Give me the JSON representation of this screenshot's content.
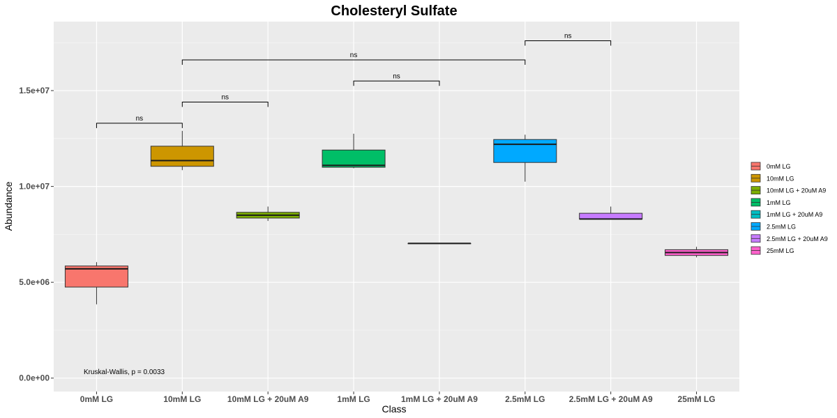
{
  "chart_data": {
    "type": "boxplot",
    "title": "Cholesteryl Sulfate",
    "xlabel": "Class",
    "ylabel": "Abundance",
    "ylim": [
      -700000,
      18600000
    ],
    "y_ticks": [
      0,
      5000000,
      10000000,
      15000000
    ],
    "y_tick_labels": [
      "0.0e+00",
      "5.0e+06",
      "1.0e+07",
      "1.5e+07"
    ],
    "grid": true,
    "legend_position": "right",
    "categories": [
      "0mM LG",
      "10mM LG",
      "10mM LG + 20uM A9",
      "1mM LG",
      "1mM LG + 20uM A9",
      "2.5mM LG",
      "2.5mM LG + 20uM A9",
      "25mM LG"
    ],
    "series": [
      {
        "name": "0mM LG",
        "color": "#F8766D",
        "min": 3850000,
        "q1": 4750000,
        "median": 5700000,
        "q3": 5850000,
        "max": 6050000
      },
      {
        "name": "10mM LG",
        "color": "#CD9600",
        "min": 10850000,
        "q1": 11050000,
        "median": 11350000,
        "q3": 12100000,
        "max": 12900000
      },
      {
        "name": "10mM LG + 20uM A9",
        "color": "#7CAE00",
        "min": 8200000,
        "q1": 8350000,
        "median": 8500000,
        "q3": 8650000,
        "max": 8950000
      },
      {
        "name": "1mM LG",
        "color": "#00BE67",
        "min": 10950000,
        "q1": 11000000,
        "median": 11100000,
        "q3": 11900000,
        "max": 12750000
      },
      {
        "name": "1mM LG + 20uM A9",
        "color": "#00BFC4",
        "min": 7030000,
        "q1": 7030000,
        "median": 7030000,
        "q3": 7030000,
        "max": 7030000
      },
      {
        "name": "2.5mM LG",
        "color": "#00A9FF",
        "min": 10250000,
        "q1": 11250000,
        "median": 12200000,
        "q3": 12450000,
        "max": 12700000
      },
      {
        "name": "2.5mM LG + 20uM A9",
        "color": "#C77CFF",
        "min": 8300000,
        "q1": 8300000,
        "median": 8300000,
        "q3": 8600000,
        "max": 8950000
      },
      {
        "name": "25mM LG",
        "color": "#FF61CC",
        "min": 6300000,
        "q1": 6400000,
        "median": 6550000,
        "q3": 6700000,
        "max": 6850000
      }
    ],
    "comparisons": [
      {
        "from": "0mM LG",
        "to": "10mM LG",
        "label": "ns",
        "y": 13300000
      },
      {
        "from": "10mM LG",
        "to": "10mM LG + 20uM A9",
        "label": "ns",
        "y": 14400000
      },
      {
        "from": "1mM LG",
        "to": "1mM LG + 20uM A9",
        "label": "ns",
        "y": 15500000
      },
      {
        "from": "10mM LG",
        "to": "2.5mM LG",
        "label": "ns",
        "y": 16600000
      },
      {
        "from": "2.5mM LG",
        "to": "2.5mM LG + 20uM A9",
        "label": "ns",
        "y": 17600000
      }
    ],
    "annotation": "Kruskal-Wallis, p = 0.0033"
  }
}
